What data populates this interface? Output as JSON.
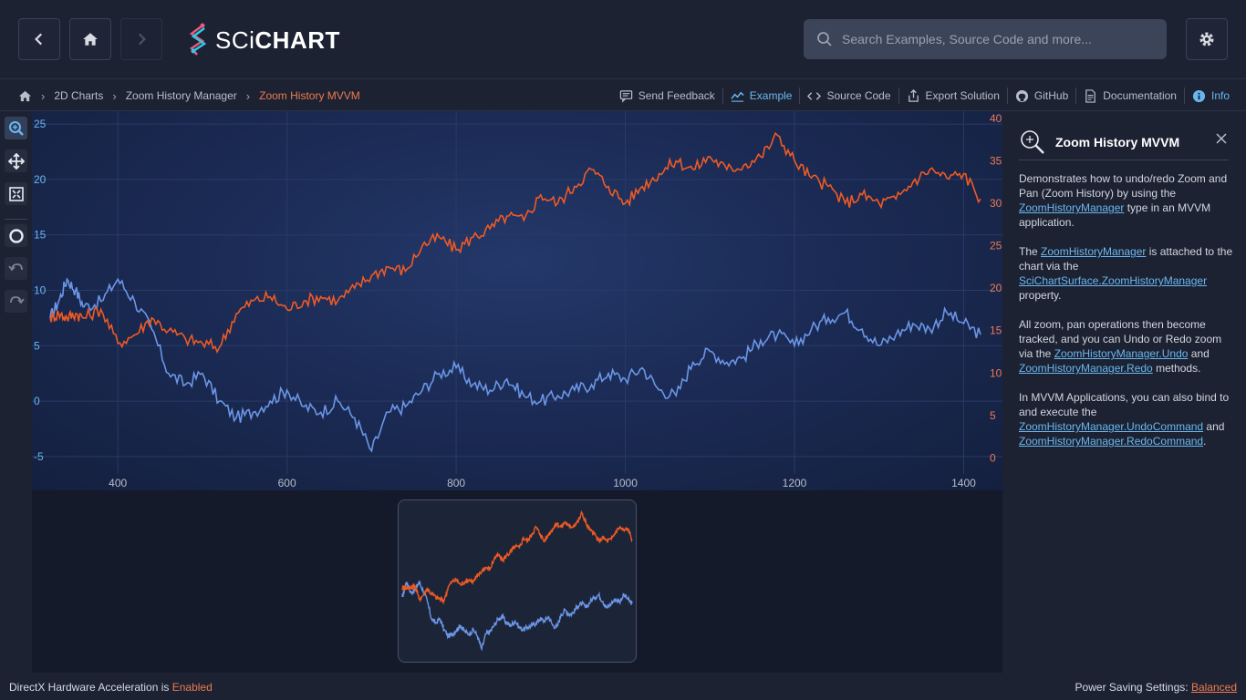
{
  "header": {
    "logo_prefix": "SCi",
    "logo_suffix": "CHART",
    "search_placeholder": "Search Examples, Source Code and more..."
  },
  "breadcrumb": {
    "items": [
      "2D Charts",
      "Zoom History Manager"
    ],
    "active": "Zoom History MVVM"
  },
  "actions": [
    "Send Feedback",
    "Example",
    "Source Code",
    "Export Solution",
    "GitHub",
    "Documentation",
    "Info"
  ],
  "colors": {
    "series1": "#6b96e6",
    "series2": "#ef5a24",
    "link": "#6ab7f0",
    "accent": "#ef7a4f"
  },
  "toolbar_icons": [
    "zoom-icon",
    "pan-icon",
    "zoom-extents-icon",
    "reset-icon",
    "undo-icon",
    "redo-icon"
  ],
  "chart_data": {
    "type": "line",
    "x_ticks": [
      400,
      600,
      800,
      1000,
      1200,
      1400
    ],
    "xlim": [
      320,
      1420
    ],
    "y_left_ticks": [
      25,
      20,
      15,
      10,
      5,
      0,
      -5
    ],
    "y_left_lim": [
      -5.5,
      25.5
    ],
    "y_right_ticks": [
      40,
      35,
      30,
      25,
      20,
      15,
      10,
      5,
      0
    ],
    "y_right_lim": [
      -0.5,
      40
    ],
    "series": [
      {
        "axis": "left",
        "color": "#6b96e6",
        "x": [
          320,
          330,
          340,
          350,
          360,
          380,
          400,
          420,
          440,
          460,
          480,
          500,
          520,
          540,
          560,
          580,
          600,
          620,
          640,
          660,
          680,
          700,
          720,
          740,
          760,
          780,
          800,
          820,
          840,
          860,
          880,
          900,
          920,
          940,
          960,
          980,
          1000,
          1020,
          1040,
          1060,
          1080,
          1100,
          1120,
          1140,
          1160,
          1180,
          1200,
          1220,
          1240,
          1260,
          1280,
          1300,
          1320,
          1340,
          1360,
          1380,
          1400,
          1420
        ],
        "y": [
          7.5,
          9,
          11,
          10,
          8.5,
          9,
          11,
          9,
          6.5,
          2.5,
          1.5,
          2.5,
          0,
          -1.5,
          -1,
          0,
          1,
          -0.5,
          -1,
          0,
          -1.5,
          -4.5,
          -1,
          -0.5,
          1,
          2.5,
          3,
          1.5,
          1,
          2,
          0.5,
          0,
          0.5,
          1,
          1.5,
          2.5,
          2,
          3,
          1,
          0.5,
          3.5,
          4.5,
          3.5,
          4,
          5.5,
          6,
          5,
          6.5,
          7.5,
          8,
          6.5,
          5,
          6,
          7,
          6.5,
          8,
          7,
          6
        ]
      },
      {
        "axis": "right",
        "color": "#ef5a24",
        "x": [
          320,
          330,
          340,
          350,
          360,
          380,
          400,
          420,
          440,
          460,
          480,
          500,
          520,
          540,
          560,
          580,
          600,
          620,
          640,
          660,
          680,
          700,
          720,
          740,
          760,
          780,
          800,
          820,
          840,
          860,
          880,
          900,
          920,
          940,
          960,
          980,
          1000,
          1020,
          1040,
          1060,
          1080,
          1100,
          1120,
          1140,
          1160,
          1180,
          1200,
          1220,
          1240,
          1260,
          1280,
          1300,
          1320,
          1340,
          1360,
          1380,
          1400,
          1420
        ],
        "y": [
          16.5,
          17,
          16.5,
          17,
          16.5,
          17.5,
          13.5,
          14.5,
          16.5,
          15,
          14,
          13.5,
          13,
          17,
          18.5,
          19,
          17.5,
          18.5,
          19,
          18.5,
          20,
          21.5,
          22.5,
          22,
          25,
          26,
          24.5,
          26,
          27,
          28.5,
          28,
          31,
          30,
          32,
          34,
          32,
          30,
          32,
          33.5,
          35,
          34,
          35.5,
          34,
          34.5,
          35.5,
          38,
          35,
          33,
          32,
          30,
          31,
          30,
          30.5,
          32.5,
          34,
          33,
          33.5,
          30.5
        ]
      }
    ]
  },
  "panel": {
    "title": "Zoom History MVVM",
    "p1_a": "Demonstrates how to undo/redo Zoom and Pan (Zoom History) by using the ",
    "p1_link": "ZoomHistoryManager",
    "p1_b": " type in an MVVM application.",
    "p2_a": "The ",
    "p2_link1": "ZoomHistoryManager",
    "p2_b": " is attached to the chart via the ",
    "p2_link2": "SciChartSurface.ZoomHistoryManager",
    "p2_c": " property.",
    "p3_a": "All zoom, pan operations then become tracked, and you can Undo or Redo zoom via the ",
    "p3_link1": "ZoomHistoryManager.Undo",
    "p3_b": " and ",
    "p3_link2": "ZoomHistoryManager.Redo",
    "p3_c": " methods.",
    "p4_a": "In MVVM Applications, you can also bind to and execute the ",
    "p4_link1": "ZoomHistoryManager.UndoCommand",
    "p4_b": " and ",
    "p4_link2": "ZoomHistoryManager.RedoCommand",
    "p4_c": "."
  },
  "status": {
    "left_label": "DirectX Hardware Acceleration is ",
    "left_value": "Enabled",
    "right_label": "Power Saving Settings: ",
    "right_value": "Balanced"
  }
}
